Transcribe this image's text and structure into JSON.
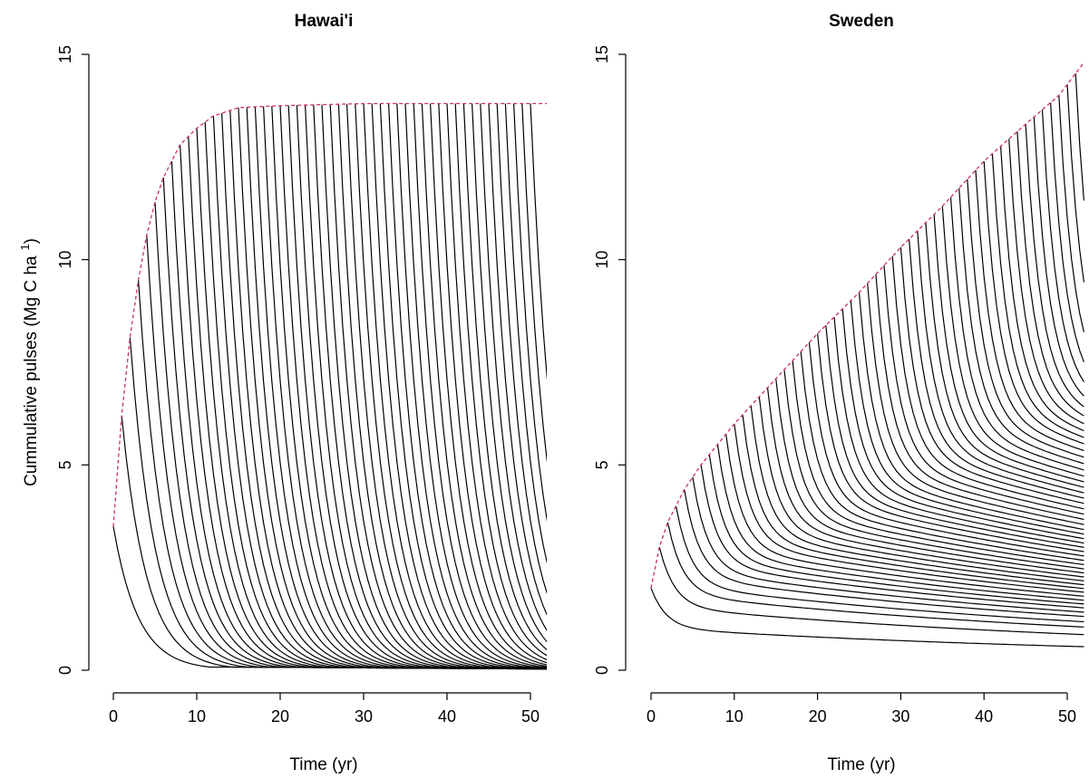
{
  "chart_data": [
    {
      "type": "line",
      "title": "Hawai'i",
      "xlabel": "Time (yr)",
      "ylabel": "Cummulative pulses (Mg C ha",
      "ylabel_superscript": "1",
      "xlim": [
        0,
        52
      ],
      "ylim": [
        0,
        15
      ],
      "x_ticks": [
        "0",
        "10",
        "20",
        "30",
        "40",
        "50"
      ],
      "y_ticks": [
        "0",
        "5",
        "10",
        "15"
      ],
      "pulse_start_years": [
        0,
        1,
        2,
        3,
        4,
        5,
        6,
        7,
        8,
        9,
        10,
        11,
        12,
        13,
        14,
        15,
        16,
        17,
        18,
        19,
        20,
        21,
        22,
        23,
        24,
        25,
        26,
        27,
        28,
        29,
        30,
        31,
        32,
        33,
        34,
        35,
        36,
        37,
        38,
        39,
        40,
        41,
        42,
        43,
        44,
        45,
        46,
        47,
        48,
        49,
        50
      ],
      "pulse_input_per_year": 3.5,
      "total_stock_series": {
        "x": [
          0,
          1,
          2,
          3,
          4,
          5,
          6,
          8,
          10,
          12,
          15,
          20,
          30,
          40,
          52
        ],
        "y": [
          3.5,
          6.2,
          8.1,
          9.5,
          10.6,
          11.4,
          12.0,
          12.8,
          13.2,
          13.5,
          13.7,
          13.75,
          13.8,
          13.8,
          13.8
        ],
        "color": "#cc3355",
        "style": "dashed"
      },
      "line_color": "#000000"
    },
    {
      "type": "line",
      "title": "Sweden",
      "xlabel": "Time (yr)",
      "ylabel": "",
      "xlim": [
        0,
        52
      ],
      "ylim": [
        0,
        15
      ],
      "x_ticks": [
        "0",
        "10",
        "20",
        "30",
        "40",
        "50"
      ],
      "y_ticks": [
        "0",
        "5",
        "10",
        "15"
      ],
      "pulse_start_years": [
        0,
        1,
        2,
        3,
        4,
        5,
        6,
        7,
        8,
        9,
        10,
        11,
        12,
        13,
        14,
        15,
        16,
        17,
        18,
        19,
        20,
        21,
        22,
        23,
        24,
        25,
        26,
        27,
        28,
        29,
        30,
        31,
        32,
        33,
        34,
        35,
        36,
        37,
        38,
        39,
        40,
        41,
        42,
        43,
        44,
        45,
        46,
        47,
        48,
        49,
        50,
        51
      ],
      "pulse_input_per_year": 2.0,
      "total_stock_series": {
        "x": [
          0,
          1,
          2,
          4,
          6,
          8,
          10,
          15,
          20,
          25,
          30,
          35,
          40,
          45,
          49,
          52
        ],
        "y": [
          2.0,
          3.0,
          3.6,
          4.4,
          5.0,
          5.5,
          6.0,
          7.1,
          8.2,
          9.2,
          10.3,
          11.3,
          12.4,
          13.3,
          14.0,
          14.8
        ],
        "color": "#cc3355",
        "style": "dashed"
      },
      "line_color": "#000000"
    }
  ]
}
